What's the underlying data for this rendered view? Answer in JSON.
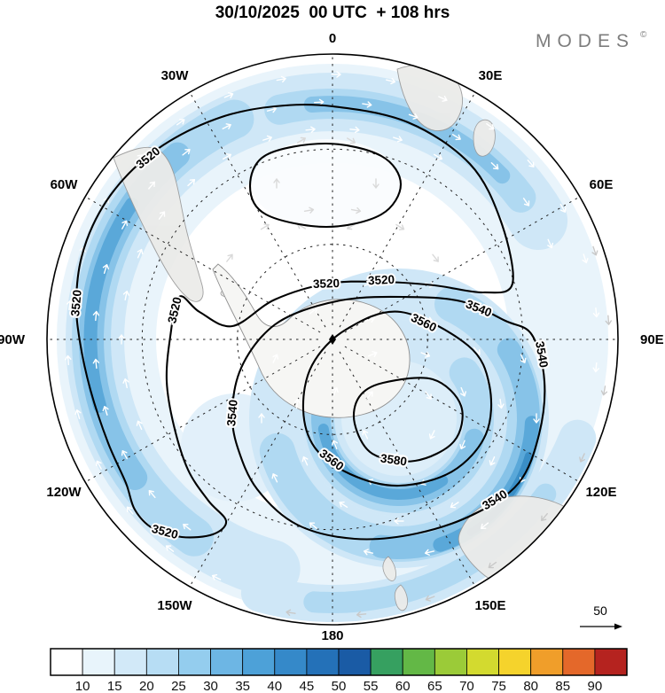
{
  "header": {
    "title": "30/10/2025  00 UTC  + 108 hrs",
    "logo": "MODES",
    "logo_mark": "©"
  },
  "map": {
    "meridians": [
      "0",
      "30E",
      "60E",
      "90E",
      "120E",
      "150E",
      "180",
      "150W",
      "120W",
      "90W",
      "60W",
      "30W"
    ]
  },
  "chart_data": {
    "type": "contour-map",
    "title": "30/10/2025 00 UTC + 108 hrs",
    "projection": "polar-stereographic",
    "meridian_labels": [
      "0",
      "30E",
      "60E",
      "90E",
      "120E",
      "150E",
      "180",
      "150W",
      "120W",
      "90W",
      "60W",
      "30W"
    ],
    "contour_levels": [
      3520,
      3540,
      3560,
      3580
    ],
    "contour_text": {
      "c3520": "3520",
      "c3540": "3540",
      "c3560": "3560",
      "c3580": "3580"
    },
    "colorbar": {
      "tick_values": [
        10,
        15,
        20,
        25,
        30,
        35,
        40,
        45,
        50,
        55,
        60,
        65,
        70,
        75,
        80,
        85,
        90
      ],
      "tick_labels": [
        "10",
        "15",
        "20",
        "25",
        "30",
        "35",
        "40",
        "45",
        "50",
        "55",
        "60",
        "65",
        "70",
        "75",
        "80",
        "85",
        "90"
      ],
      "colors": [
        "#ffffff",
        "#e8f4fb",
        "#d2e9f8",
        "#b7ddf4",
        "#94cdee",
        "#6db6e4",
        "#4da1d8",
        "#3589c9",
        "#2471b8",
        "#1a5ba5",
        "#36a060",
        "#63b846",
        "#9bcb38",
        "#d3da2f",
        "#f5d32c",
        "#f09e2a",
        "#e4682a",
        "#b5231f"
      ]
    },
    "wind_scale_label": "50",
    "shading_accent_colors": [
      "#e9f4fb",
      "#cfe7f7",
      "#b0d9f2",
      "#87c3e8",
      "#5aa8d9",
      "#3a8ec6"
    ]
  }
}
